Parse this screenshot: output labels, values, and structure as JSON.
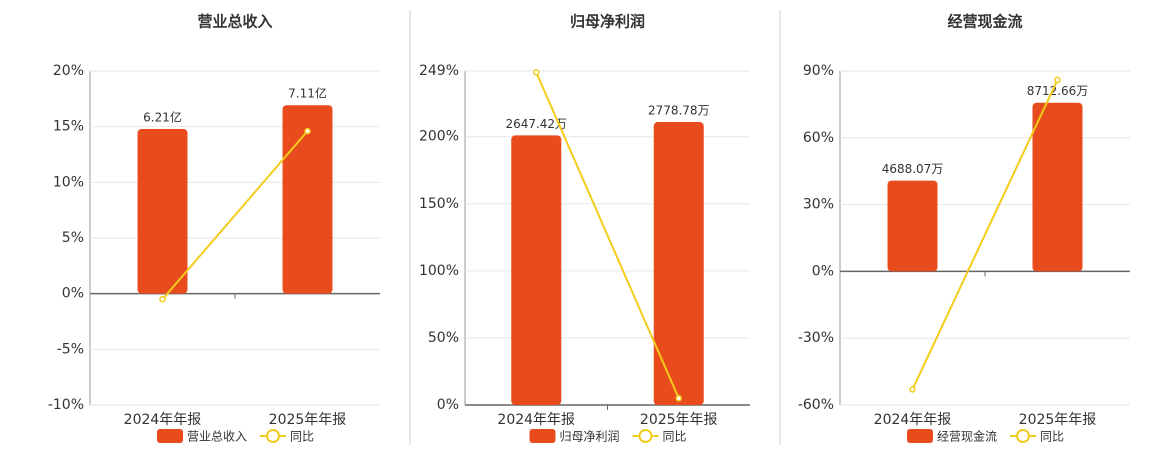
{
  "chart_data": [
    {
      "type": "bar",
      "title": "营业总收入",
      "categories": [
        "2024年年报",
        "2025年年报"
      ],
      "series": [
        {
          "name": "营业总收入",
          "color": "#e84c1c",
          "values": [
            6.21,
            7.11
          ],
          "value_labels": [
            "6.21亿",
            "7.11亿"
          ],
          "axis": "y2"
        },
        {
          "name": "同比",
          "color": "#f2cc1a",
          "values": [
            -0.5,
            14.6
          ]
        }
      ],
      "ylim": [
        -10,
        20
      ],
      "yticks": [
        {
          "value": -10,
          "label": "-10%"
        },
        {
          "value": -5,
          "label": "-5%"
        },
        {
          "value": 0,
          "label": "0%"
        },
        {
          "value": 5,
          "label": "5%"
        },
        {
          "value": 10,
          "label": "10%"
        },
        {
          "value": 15,
          "label": "15%"
        },
        {
          "value": 20,
          "label": "20%"
        }
      ],
      "y2lim": [
        -4.2,
        8.4
      ],
      "grid": true
    },
    {
      "type": "bar",
      "title": "归母净利润",
      "categories": [
        "2024年年报",
        "2025年年报"
      ],
      "series": [
        {
          "name": "归母净利润",
          "color": "#e84c1c",
          "values": [
            2647.42,
            2778.78
          ],
          "value_labels": [
            "2647.42万",
            "2778.78万"
          ],
          "axis": "y2"
        },
        {
          "name": "同比",
          "color": "#f2cc1a",
          "values": [
            248,
            5
          ]
        }
      ],
      "ylim": [
        0,
        249
      ],
      "yticks": [
        {
          "value": 0,
          "label": "0%"
        },
        {
          "value": 50,
          "label": "50%"
        },
        {
          "value": 100,
          "label": "100%"
        },
        {
          "value": 150,
          "label": "150%"
        },
        {
          "value": 200,
          "label": "200%"
        },
        {
          "value": 249,
          "label": "249%"
        }
      ],
      "y2lim": [
        0,
        3280
      ],
      "grid": true
    },
    {
      "type": "bar",
      "title": "经营现金流",
      "categories": [
        "2024年年报",
        "2025年年报"
      ],
      "series": [
        {
          "name": "经营现金流",
          "color": "#e84c1c",
          "values": [
            4688.07,
            8712.66
          ],
          "value_labels": [
            "4688.07万",
            "8712.66万"
          ],
          "axis": "y2"
        },
        {
          "name": "同比",
          "color": "#f2cc1a",
          "values": [
            -53,
            86
          ]
        }
      ],
      "ylim": [
        -60,
        90
      ],
      "yticks": [
        {
          "value": -60,
          "label": "-60%"
        },
        {
          "value": -30,
          "label": "-30%"
        },
        {
          "value": 0,
          "label": "0%"
        },
        {
          "value": 30,
          "label": "30%"
        },
        {
          "value": 60,
          "label": "60%"
        },
        {
          "value": 90,
          "label": "90%"
        }
      ],
      "y2lim": [
        -6900,
        10350
      ],
      "grid": true
    }
  ]
}
